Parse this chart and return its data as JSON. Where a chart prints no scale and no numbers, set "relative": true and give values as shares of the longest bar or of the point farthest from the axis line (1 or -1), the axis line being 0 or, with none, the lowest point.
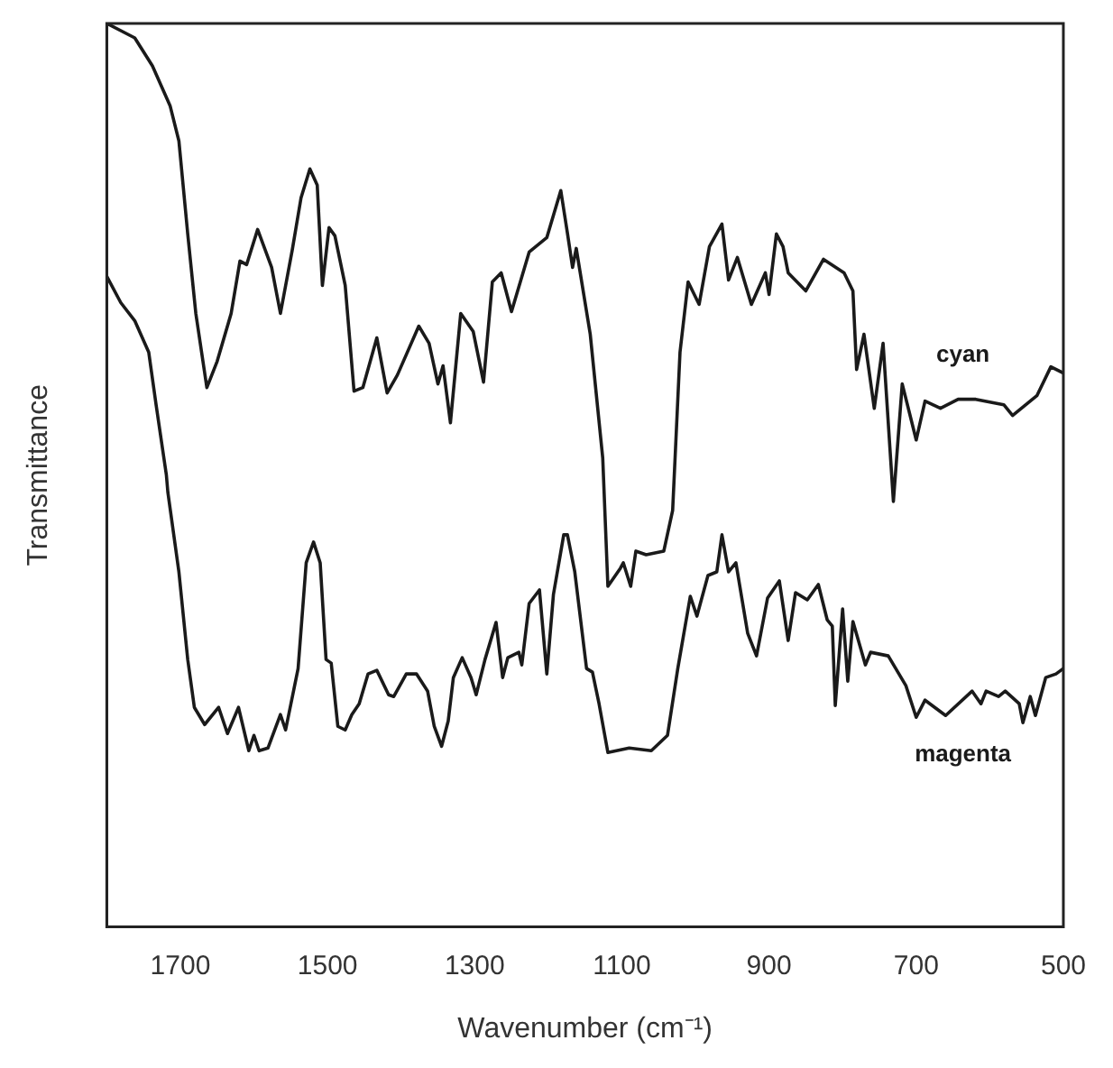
{
  "chart_data": {
    "type": "line",
    "relative": true,
    "xlabel": "Wavenumber (cm⁻¹)",
    "ylabel": "Transmittance",
    "xlim": [
      1800,
      500
    ],
    "xticks": [
      1700,
      1500,
      1300,
      1100,
      900,
      700,
      500
    ],
    "grid": false,
    "legend": false,
    "marker": "none",
    "line_style": "solid",
    "series": [
      {
        "name": "cyan",
        "color": "#1a1a1a",
        "x": [
          1800,
          1762,
          1738,
          1714,
          1702,
          1690,
          1679,
          1664,
          1650,
          1631,
          1619,
          1610,
          1595,
          1576,
          1564,
          1548,
          1536,
          1524,
          1514,
          1507,
          1498,
          1490,
          1476,
          1464,
          1452,
          1433,
          1419,
          1405,
          1376,
          1362,
          1350,
          1343,
          1333,
          1319,
          1302,
          1288,
          1276,
          1264,
          1250,
          1226,
          1202,
          1183,
          1174,
          1167,
          1162,
          1143,
          1126,
          1119,
          1102,
          1098,
          1088,
          1081,
          1067,
          1043,
          1031,
          1021,
          1010,
          995,
          981,
          964,
          955,
          943,
          924,
          905,
          900,
          890,
          881,
          874,
          850,
          826,
          798,
          786,
          781,
          771,
          757,
          745,
          731,
          719,
          700,
          688,
          667,
          643,
          619,
          581,
          569,
          536,
          517,
          500
        ],
        "values": [
          1.0,
          0.984,
          0.953,
          0.909,
          0.87,
          0.767,
          0.679,
          0.597,
          0.626,
          0.679,
          0.737,
          0.733,
          0.772,
          0.73,
          0.679,
          0.749,
          0.807,
          0.839,
          0.821,
          0.71,
          0.774,
          0.765,
          0.71,
          0.593,
          0.597,
          0.652,
          0.591,
          0.611,
          0.665,
          0.646,
          0.601,
          0.621,
          0.558,
          0.679,
          0.659,
          0.603,
          0.714,
          0.724,
          0.681,
          0.747,
          0.763,
          0.815,
          0.768,
          0.73,
          0.751,
          0.656,
          0.519,
          0.377,
          0.397,
          0.403,
          0.377,
          0.416,
          0.412,
          0.416,
          0.461,
          0.636,
          0.714,
          0.689,
          0.753,
          0.778,
          0.716,
          0.741,
          0.689,
          0.724,
          0.7,
          0.767,
          0.753,
          0.724,
          0.704,
          0.739,
          0.724,
          0.704,
          0.617,
          0.656,
          0.574,
          0.646,
          0.471,
          0.601,
          0.539,
          0.582,
          0.574,
          0.584,
          0.584,
          0.578,
          0.566,
          0.588,
          0.62,
          0.613
        ]
      },
      {
        "name": "magenta",
        "color": "#1a1a1a",
        "x": [
          1800,
          1781,
          1762,
          1743,
          1733,
          1719,
          1717,
          1702,
          1690,
          1681,
          1667,
          1648,
          1636,
          1621,
          1607,
          1600,
          1593,
          1581,
          1564,
          1557,
          1540,
          1529,
          1519,
          1510,
          1502,
          1495,
          1486,
          1476,
          1467,
          1457,
          1445,
          1433,
          1417,
          1410,
          1393,
          1379,
          1364,
          1355,
          1345,
          1336,
          1329,
          1317,
          1305,
          1298,
          1286,
          1271,
          1262,
          1255,
          1240,
          1236,
          1226,
          1212,
          1202,
          1193,
          1179,
          1174,
          1164,
          1148,
          1140,
          1131,
          1119,
          1090,
          1060,
          1038,
          1024,
          1007,
          998,
          983,
          971,
          964,
          955,
          945,
          929,
          917,
          902,
          886,
          874,
          864,
          848,
          833,
          821,
          814,
          810,
          800,
          793,
          786,
          769,
          762,
          738,
          714,
          700,
          688,
          660,
          624,
          612,
          605,
          588,
          579,
          560,
          555,
          545,
          538,
          524,
          510,
          500
        ],
        "values": [
          0.72,
          0.691,
          0.671,
          0.636,
          0.578,
          0.5,
          0.481,
          0.393,
          0.296,
          0.243,
          0.224,
          0.243,
          0.214,
          0.243,
          0.195,
          0.212,
          0.195,
          0.198,
          0.235,
          0.218,
          0.286,
          0.403,
          0.426,
          0.403,
          0.296,
          0.292,
          0.222,
          0.218,
          0.235,
          0.247,
          0.28,
          0.284,
          0.257,
          0.255,
          0.28,
          0.28,
          0.261,
          0.222,
          0.2,
          0.228,
          0.276,
          0.298,
          0.276,
          0.257,
          0.296,
          0.337,
          0.276,
          0.298,
          0.304,
          0.29,
          0.358,
          0.373,
          0.28,
          0.368,
          0.434,
          0.434,
          0.393,
          0.286,
          0.282,
          0.247,
          0.193,
          0.198,
          0.195,
          0.212,
          0.286,
          0.366,
          0.344,
          0.389,
          0.393,
          0.434,
          0.393,
          0.403,
          0.325,
          0.3,
          0.364,
          0.383,
          0.317,
          0.37,
          0.362,
          0.379,
          0.34,
          0.333,
          0.245,
          0.352,
          0.272,
          0.338,
          0.29,
          0.304,
          0.3,
          0.267,
          0.232,
          0.251,
          0.234,
          0.261,
          0.247,
          0.261,
          0.255,
          0.261,
          0.247,
          0.226,
          0.255,
          0.234,
          0.276,
          0.28,
          0.286
        ]
      }
    ]
  }
}
